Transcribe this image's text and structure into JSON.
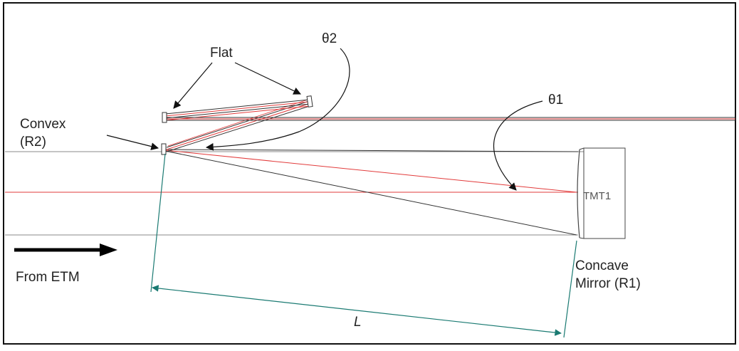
{
  "labels": {
    "flat": "Flat",
    "theta2": "θ2",
    "theta1": "θ1",
    "convex_line1": "Convex",
    "convex_line2": "(R2)",
    "from_etm": "From ETM",
    "concave_line1": "Concave",
    "concave_line2": "Mirror (R1)",
    "tmt1": "TMT1",
    "length": "L"
  },
  "colors": {
    "red_beam": "#e23b3b",
    "gray_beam": "#7a7a7a",
    "dark_line": "#222222",
    "dimension": "#1a7a72",
    "arrow": "#000000"
  }
}
